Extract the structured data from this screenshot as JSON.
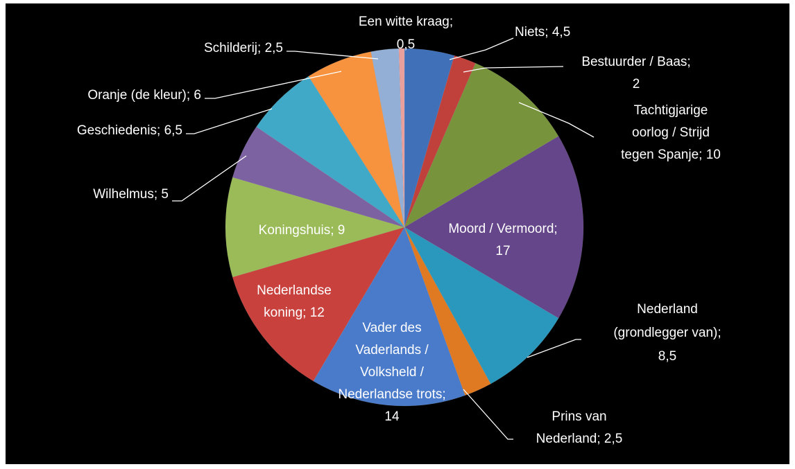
{
  "chart_data": {
    "type": "pie",
    "values": [
      4.5,
      2,
      10,
      17,
      8.5,
      2.5,
      14,
      12,
      9,
      5,
      6.5,
      6,
      2.5,
      0.5
    ],
    "value_labels": [
      [
        "Niets; 4,5"
      ],
      [
        "Bestuurder / Baas;",
        "2"
      ],
      [
        "Tachtigjarige",
        "oorlog / Strijd",
        "tegen Spanje; 10"
      ],
      [
        "Moord / Vermoord;",
        "17"
      ],
      [
        "Nederland",
        "(grondlegger van);",
        "8,5"
      ],
      [
        "Prins van",
        "Nederland; 2,5"
      ],
      [
        "Vader des",
        "Vaderlands /",
        "Volksheld /",
        "Nederlandse trots;",
        "14"
      ],
      [
        "Nederlandse",
        "koning; 12"
      ],
      [
        "Koningshuis; 9"
      ],
      [
        "Wilhelmus; 5"
      ],
      [
        "Geschiedenis; 6,5"
      ],
      [
        "Oranje (de kleur); 6"
      ],
      [
        "Schilderij; 2,5"
      ],
      [
        "Een witte kraag;",
        "0,5"
      ]
    ],
    "colors": [
      "#3f70b8",
      "#c0403c",
      "#77933c",
      "#65468a",
      "#2a98bc",
      "#e07a22",
      "#4a7bca",
      "#c9413d",
      "#9bbb59",
      "#7d62a2",
      "#41a9c8",
      "#f7923f",
      "#93afd6",
      "#e9a09c"
    ]
  }
}
